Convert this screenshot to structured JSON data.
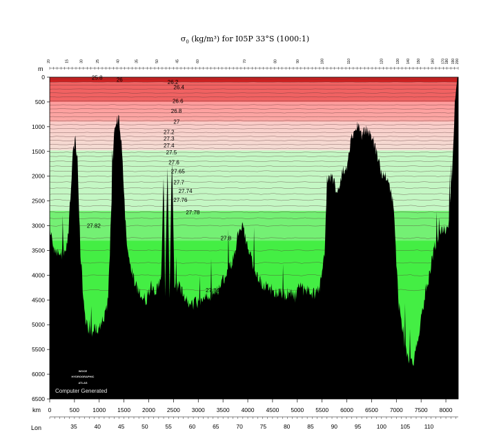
{
  "chart_data": {
    "type": "section",
    "title_sym": "σ",
    "title_sub": "0",
    "title_rest": " (kg/m³) for I05P 33°S (1000:1)",
    "ylabel": "m",
    "xlabel": "km",
    "lon_label": "Lon",
    "ylim": [
      0,
      6500
    ],
    "xlim": [
      0,
      8250
    ],
    "depth_ticks": [
      "0",
      "500",
      "1000",
      "1500",
      "2000",
      "2500",
      "3000",
      "3500",
      "4000",
      "4500",
      "5000",
      "5500",
      "6000",
      "6500"
    ],
    "km_ticks": [
      "0",
      "500",
      "1000",
      "1500",
      "2000",
      "2500",
      "3000",
      "3500",
      "4000",
      "4500",
      "5000",
      "5500",
      "6000",
      "6500",
      "7000",
      "7500",
      "8000"
    ],
    "lon_ticks": [
      "35",
      "40",
      "45",
      "50",
      "55",
      "60",
      "65",
      "70",
      "75",
      "80",
      "85",
      "90",
      "95",
      "100",
      "105",
      "110"
    ],
    "station_labels": [
      "20",
      "15",
      "30",
      "25",
      "40",
      "35",
      "50",
      "45",
      "60",
      "70",
      "80",
      "90",
      "100",
      "110",
      "120",
      "130",
      "140",
      "150",
      "160",
      "170",
      "180",
      "190",
      "200"
    ],
    "contours": [
      {
        "value": "25.8",
        "depth": 5
      },
      {
        "value": "26",
        "depth": 50
      },
      {
        "value": "26.2",
        "depth": 100
      },
      {
        "value": "26.4",
        "depth": 200
      },
      {
        "value": "26.6",
        "depth": 480
      },
      {
        "value": "26.8",
        "depth": 680
      },
      {
        "value": "27",
        "depth": 900
      },
      {
        "value": "27.2",
        "depth": 1110
      },
      {
        "value": "27.3",
        "depth": 1240
      },
      {
        "value": "27.4",
        "depth": 1380
      },
      {
        "value": "27.5",
        "depth": 1520
      },
      {
        "value": "27.6",
        "depth": 1720
      },
      {
        "value": "27.65",
        "depth": 1900
      },
      {
        "value": "27.7",
        "depth": 2120
      },
      {
        "value": "27.74",
        "depth": 2300
      },
      {
        "value": "27.76",
        "depth": 2480
      },
      {
        "value": "27.78",
        "depth": 2730
      },
      {
        "value": "27.8",
        "depth": 3250
      },
      {
        "value": "27.82",
        "depth": 3000
      },
      {
        "value": "27.84",
        "depth": 4300
      }
    ],
    "colors": {
      "surface": "#cc2020",
      "upper": "#f06262",
      "upper_light": "#ff9a9a",
      "transition": "#ffcfcf",
      "deep_light": "#c4f7c4",
      "deep": "#74f074",
      "bottom": "#44ee44",
      "bathymetry": "#000000"
    }
  },
  "watermark": {
    "line1": "WOCE",
    "line2": "HYDROGRAPHIC",
    "line3": "ATLAS",
    "generated": "Computer Generated"
  }
}
